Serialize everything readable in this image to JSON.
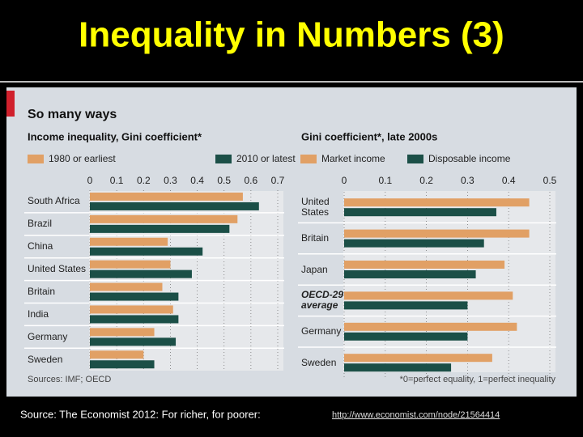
{
  "slide": {
    "title": "Inequality in Numbers (3)",
    "caption": "Source: The Economist 2012: For richer, for poorer:",
    "link": "http://www.economist.com/node/21564414"
  },
  "panel": {
    "title": "So many ways",
    "source": "Sources: IMF; OECD",
    "footnote": "*0=perfect equality, 1=perfect inequality"
  },
  "chart_data": [
    {
      "type": "bar",
      "title": "Income inequality, Gini coefficient*",
      "categories": [
        "South Africa",
        "Brazil",
        "China",
        "United States",
        "Britain",
        "India",
        "Germany",
        "Sweden"
      ],
      "series": [
        {
          "name": "1980 or earliest",
          "color": "#e1a065",
          "values": [
            0.57,
            0.55,
            0.29,
            0.3,
            0.27,
            0.31,
            0.24,
            0.2
          ]
        },
        {
          "name": "2010 or latest",
          "color": "#1b4f47",
          "values": [
            0.63,
            0.52,
            0.42,
            0.38,
            0.33,
            0.33,
            0.32,
            0.24
          ]
        }
      ],
      "xlim": [
        0,
        0.7
      ],
      "xticks": [
        0,
        0.1,
        0.2,
        0.3,
        0.4,
        0.5,
        0.6,
        0.7
      ],
      "grid": true
    },
    {
      "type": "bar",
      "title": "Gini coefficient*, late 2000s",
      "categories": [
        "United States",
        "Britain",
        "Japan",
        "OECD-29 average",
        "Germany",
        "Sweden"
      ],
      "series": [
        {
          "name": "Market income",
          "color": "#e1a065",
          "values": [
            0.45,
            0.45,
            0.39,
            0.41,
            0.42,
            0.36
          ]
        },
        {
          "name": "Disposable income",
          "color": "#1b4f47",
          "values": [
            0.37,
            0.34,
            0.32,
            0.3,
            0.3,
            0.26
          ]
        }
      ],
      "xlim": [
        0,
        0.5
      ],
      "xticks": [
        0,
        0.1,
        0.2,
        0.3,
        0.4,
        0.5
      ],
      "grid": true
    }
  ]
}
